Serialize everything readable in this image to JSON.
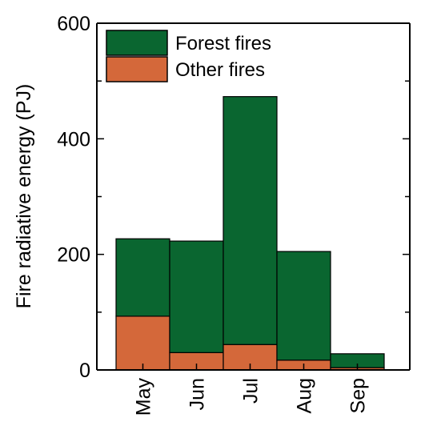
{
  "chart_data": {
    "type": "bar",
    "stacked": true,
    "categories": [
      "May",
      "Jun",
      "Jul",
      "Aug",
      "Sep"
    ],
    "series": [
      {
        "name": "Other fires",
        "values": [
          93,
          30,
          44,
          17,
          4
        ]
      },
      {
        "name": "Forest fires",
        "values": [
          134,
          193,
          429,
          188,
          24
        ]
      }
    ],
    "ylabel": "Fire radiative energy (PJ)",
    "xlabel": "",
    "ylim": [
      0,
      600
    ],
    "yticks": [
      0,
      200,
      400,
      600
    ],
    "ytick_labels": [
      "0",
      "200",
      "400",
      "600"
    ],
    "grid": false,
    "legend_position": "top-left",
    "legend": [
      "Forest fires",
      "Other fires"
    ],
    "colors": {
      "Forest fires": "#0a6630",
      "Other fires": "#d4683a"
    }
  }
}
